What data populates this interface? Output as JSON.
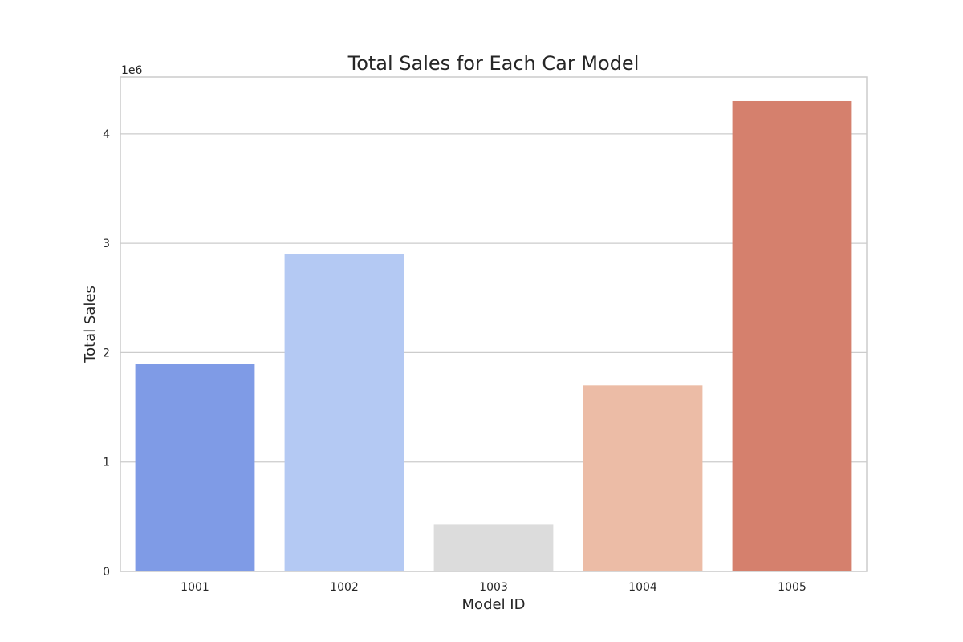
{
  "chart_data": {
    "type": "bar",
    "title": "Total Sales for Each Car Model",
    "xlabel": "Model ID",
    "ylabel": "Total Sales",
    "y_offset_label": "1e6",
    "categories": [
      "1001",
      "1002",
      "1003",
      "1004",
      "1005"
    ],
    "values": [
      1900000,
      2900000,
      430000,
      1700000,
      4300000
    ],
    "colors": [
      "#7f9be6",
      "#b4c9f3",
      "#dcdcdc",
      "#ecbca6",
      "#d5806d"
    ],
    "ylim": [
      0,
      4520000
    ],
    "yticks": [
      0,
      1000000,
      2000000,
      3000000,
      4000000
    ],
    "ytick_labels": [
      "0",
      "1",
      "2",
      "3",
      "4"
    ],
    "grid": "horizontal",
    "legend": "none"
  }
}
